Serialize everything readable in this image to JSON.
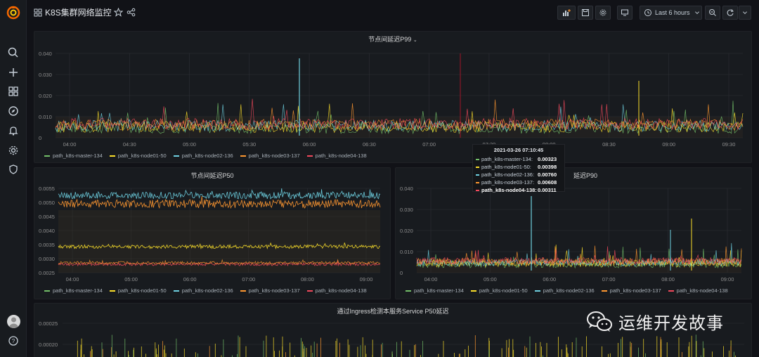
{
  "header": {
    "title": "K8S集群网络监控",
    "time_range": "Last 6 hours"
  },
  "colors": {
    "master": "#73bf69",
    "node01": "#fade2a",
    "node02": "#5794f2",
    "node02_cyan": "#6ed0e0",
    "node03": "#ff9830",
    "node04": "#f2495c"
  },
  "series_names": [
    "path_k8s-master-134",
    "path_k8s-node01-50",
    "path_k8s-node02-136",
    "path_k8s-node03-137",
    "path_k8s-node04-138"
  ],
  "panels": {
    "p99": {
      "title": "节点间延迟P99",
      "y_ticks": [
        "0.040",
        "0.030",
        "0.020",
        "0.010",
        "0"
      ],
      "x_ticks": [
        "04:00",
        "04:30",
        "05:00",
        "05:30",
        "06:00",
        "06:30",
        "07:00",
        "07:30",
        "08:00",
        "08:30",
        "09:00",
        "09:30"
      ]
    },
    "p50": {
      "title": "节点间延迟P50",
      "y_ticks": [
        "0.0055",
        "0.0050",
        "0.0045",
        "0.0040",
        "0.0035",
        "0.0030",
        "0.0025"
      ],
      "x_ticks": [
        "04:00",
        "05:00",
        "06:00",
        "07:00",
        "08:00",
        "09:00"
      ]
    },
    "p90": {
      "title": "节点间延迟P90",
      "title_visible": "延迟P90",
      "y_ticks": [
        "0.040",
        "0.030",
        "0.020",
        "0.010",
        "0"
      ],
      "x_ticks": [
        "04:00",
        "05:00",
        "06:00",
        "07:00",
        "08:00",
        "09:00"
      ]
    },
    "ingress": {
      "title": "通过Ingress检测本服务Service P50延迟",
      "y_ticks": [
        "0.00025",
        "0.00020"
      ]
    }
  },
  "tooltip": {
    "time": "2021-03-26 07:10:45",
    "rows": [
      {
        "name": "path_k8s-master-134:",
        "value": "0.00323"
      },
      {
        "name": "path_k8s-node01-50:",
        "value": "0.00398"
      },
      {
        "name": "path_k8s-node02-136:",
        "value": "0.00760"
      },
      {
        "name": "path_k8s-node03-137:",
        "value": "0.00608"
      },
      {
        "name": "path_k8s-node04-138:",
        "value": "0.00311"
      }
    ]
  },
  "watermark": {
    "text": "运维开发故事"
  }
}
